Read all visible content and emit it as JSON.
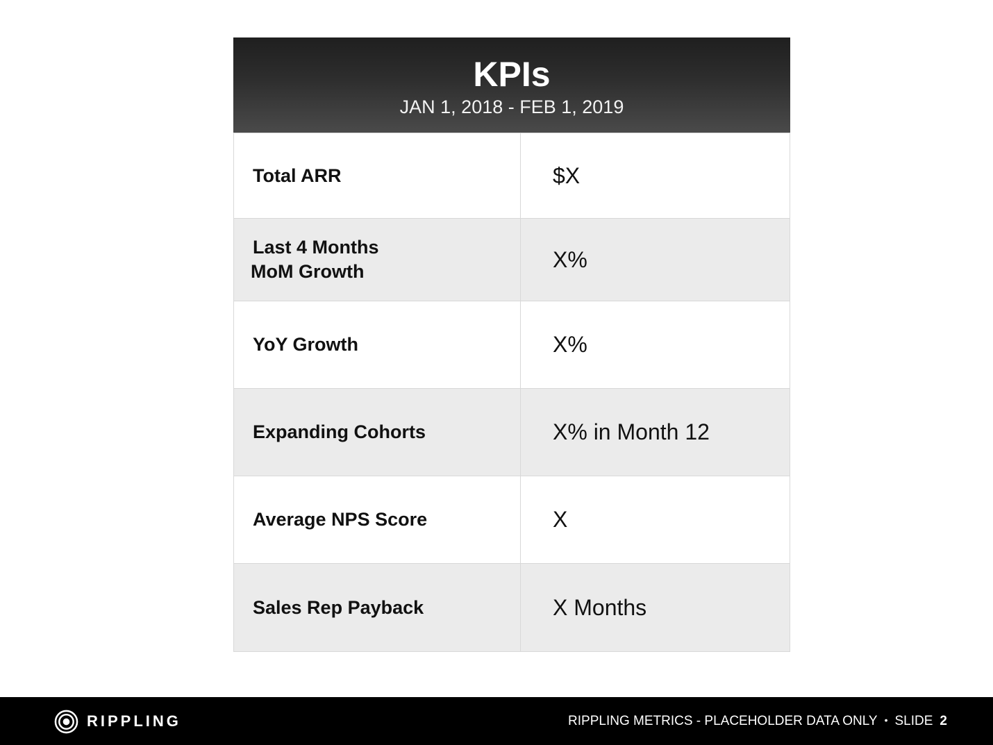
{
  "header": {
    "title": "KPIs",
    "date_range": "JAN 1, 2018 - FEB 1, 2019"
  },
  "kpis": [
    {
      "label_lines": [
        "Total ARR"
      ],
      "value": "$X"
    },
    {
      "label_lines": [
        "Last 4 Months",
        "MoM Growth"
      ],
      "value": "X%"
    },
    {
      "label_lines": [
        "YoY Growth"
      ],
      "value": "X%"
    },
    {
      "label_lines": [
        "Expanding Cohorts"
      ],
      "value": "X% in Month 12"
    },
    {
      "label_lines": [
        "Average NPS Score"
      ],
      "value": "X"
    },
    {
      "label_lines": [
        "Sales Rep Payback"
      ],
      "value": "X Months"
    }
  ],
  "footer": {
    "brand_name": "RIPPLING",
    "brand_icon": "rippling-logo-icon",
    "caption": "RIPPLING METRICS - PLACEHOLDER DATA ONLY",
    "separator": "•",
    "slide_label": "SLIDE",
    "slide_number": "2"
  },
  "colors": {
    "header_dark": "#1f1f1f",
    "row_alt": "#ebebeb",
    "footer_bg": "#000000"
  }
}
